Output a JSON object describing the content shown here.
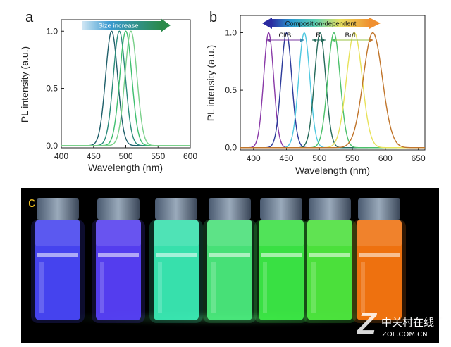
{
  "chart_data": [
    {
      "panel": "a",
      "type": "line",
      "xlabel": "Wavelength (nm)",
      "ylabel": "PL intensity (a.u.)",
      "xlim": [
        400,
        600
      ],
      "ylim": [
        -0.02,
        1.1
      ],
      "xticks": [
        400,
        450,
        500,
        550,
        600
      ],
      "yticks": [
        0.0,
        0.5,
        1.0
      ],
      "arrow_label": "Size increase",
      "series": [
        {
          "peak": 478,
          "fwhm": 22,
          "color": "#1f5f6a"
        },
        {
          "peak": 490,
          "fwhm": 22,
          "color": "#2a8a7a"
        },
        {
          "peak": 500,
          "fwhm": 22,
          "color": "#3fbf6f"
        },
        {
          "peak": 508,
          "fwhm": 22,
          "color": "#7ad08a"
        }
      ]
    },
    {
      "panel": "b",
      "type": "line",
      "xlabel": "Wavelength (nm)",
      "ylabel": "PL intensity (a.u.)",
      "xlim": [
        380,
        660
      ],
      "ylim": [
        -0.02,
        1.15
      ],
      "xticks": [
        400,
        450,
        500,
        550,
        600,
        650
      ],
      "yticks": [
        0.0,
        0.5,
        1.0
      ],
      "arrow_label": "Composition-dependent",
      "annotations": [
        "Cl/Br",
        "Br",
        "Br/I"
      ],
      "series": [
        {
          "peak": 423,
          "fwhm": 18,
          "color": "#8a3aa8"
        },
        {
          "peak": 450,
          "fwhm": 19,
          "color": "#2c3a9a"
        },
        {
          "peak": 477,
          "fwhm": 20,
          "color": "#4fc8e0"
        },
        {
          "peak": 501,
          "fwhm": 20,
          "color": "#256a5a"
        },
        {
          "peak": 522,
          "fwhm": 22,
          "color": "#4bc06a"
        },
        {
          "peak": 553,
          "fwhm": 28,
          "color": "#e8e25a"
        },
        {
          "peak": 581,
          "fwhm": 34,
          "color": "#c0742a"
        }
      ]
    }
  ],
  "photo": {
    "panel": "c",
    "vials": [
      {
        "glow": "#4a48ff"
      },
      {
        "glow": "#5a42ff"
      },
      {
        "glow": "#3cf0b8"
      },
      {
        "glow": "#4cf080"
      },
      {
        "glow": "#3ef048"
      },
      {
        "glow": "#50f040"
      },
      {
        "glow": "#ff7a10"
      }
    ]
  },
  "watermark": {
    "line1": "中关村在线",
    "line2": "ZOL.COM.CN"
  }
}
